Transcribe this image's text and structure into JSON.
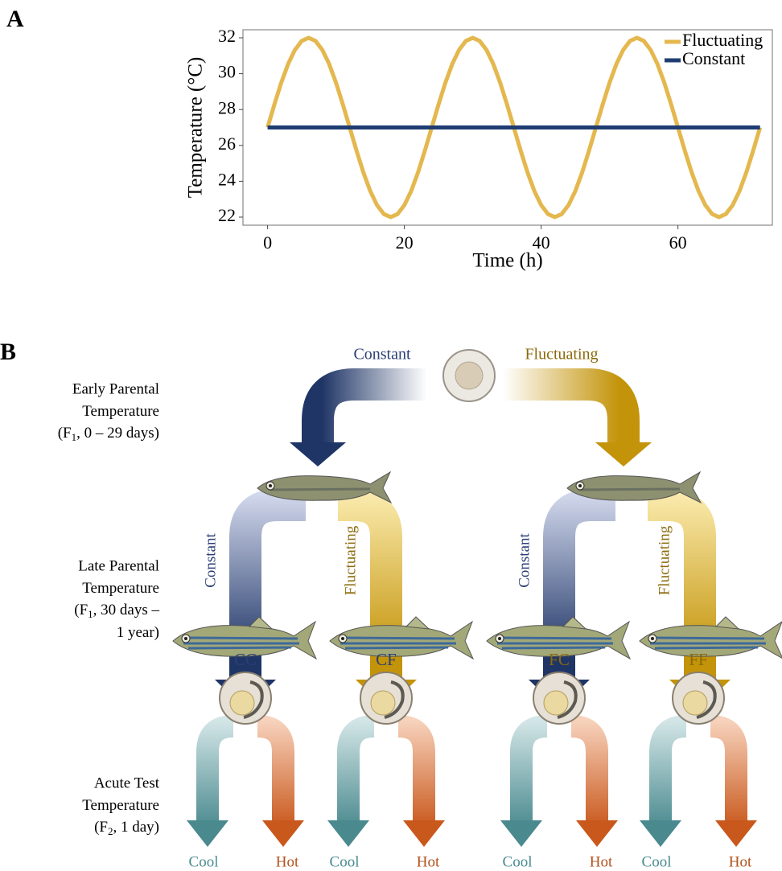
{
  "panel_a_label": "A",
  "chart_data": {
    "type": "line",
    "x_label": "Time (h)",
    "y_label": "Temperature (°C)",
    "xlim": [
      -3.6,
      73.8
    ],
    "ylim": [
      21.55,
      32.45
    ],
    "xticks": [
      0,
      20,
      40,
      60
    ],
    "yticks": [
      22,
      24,
      26,
      28,
      30,
      32
    ],
    "grid": false,
    "legend": "top-right",
    "series": [
      {
        "name": "Fluctuating",
        "color": "#e4b84f",
        "x": [
          0,
          1,
          2,
          3,
          4,
          5,
          6,
          7,
          8,
          9,
          10,
          11,
          12,
          13,
          14,
          15,
          16,
          17,
          18,
          19,
          20,
          21,
          22,
          23,
          24,
          25,
          26,
          27,
          28,
          29,
          30,
          31,
          32,
          33,
          34,
          35,
          36,
          37,
          38,
          39,
          40,
          41,
          42,
          43,
          44,
          45,
          46,
          47,
          48,
          49,
          50,
          51,
          52,
          53,
          54,
          55,
          56,
          57,
          58,
          59,
          60,
          61,
          62,
          63,
          64,
          65,
          66,
          67,
          68,
          69,
          70,
          71,
          72
        ],
        "values": [
          27,
          28.29,
          29.5,
          30.54,
          31.33,
          31.83,
          32,
          31.83,
          31.33,
          30.54,
          29.5,
          28.29,
          27,
          25.71,
          24.5,
          23.46,
          22.67,
          22.17,
          22,
          22.17,
          22.67,
          23.46,
          24.5,
          25.71,
          27,
          28.29,
          29.5,
          30.54,
          31.33,
          31.83,
          32,
          31.83,
          31.33,
          30.54,
          29.5,
          28.29,
          27,
          25.71,
          24.5,
          23.46,
          22.67,
          22.17,
          22,
          22.17,
          22.67,
          23.46,
          24.5,
          25.71,
          27,
          28.29,
          29.5,
          30.54,
          31.33,
          31.83,
          32,
          31.83,
          31.33,
          30.54,
          29.5,
          28.29,
          27,
          25.71,
          24.5,
          23.46,
          22.67,
          22.17,
          22,
          22.17,
          22.67,
          23.46,
          24.5,
          25.71,
          27
        ]
      },
      {
        "name": "Constant",
        "color": "#1f3c73",
        "x": [
          0,
          72
        ],
        "values": [
          27,
          27
        ]
      }
    ]
  },
  "panel_b": {
    "label": "B",
    "rows": [
      {
        "lines": [
          "Early Parental",
          "Temperature",
          {
            "pre": "(F",
            "sub": "1",
            "post": ", 0 – 29 days)"
          }
        ]
      },
      {
        "lines": [
          "Late Parental",
          "Temperature",
          {
            "pre": "(F",
            "sub": "1",
            "post": ", 30 days –"
          },
          "1 year)"
        ]
      },
      {
        "lines": [
          "Acute Test",
          "Temperature",
          {
            "pre": "(F",
            "sub": "2",
            "post": ", 1 day)"
          }
        ]
      }
    ],
    "top_arrows": [
      "Constant",
      "Fluctuating"
    ],
    "mid_arrows": [
      [
        "Constant",
        "Fluctuating"
      ],
      [
        "Constant",
        "Fluctuating"
      ]
    ],
    "groups": [
      "CC",
      "CF",
      "FC",
      "FF"
    ],
    "test_arrows": [
      [
        "Cool",
        "Hot"
      ],
      [
        "Cool",
        "Hot"
      ],
      [
        "Cool",
        "Hot"
      ],
      [
        "Cool",
        "Hot"
      ]
    ]
  }
}
